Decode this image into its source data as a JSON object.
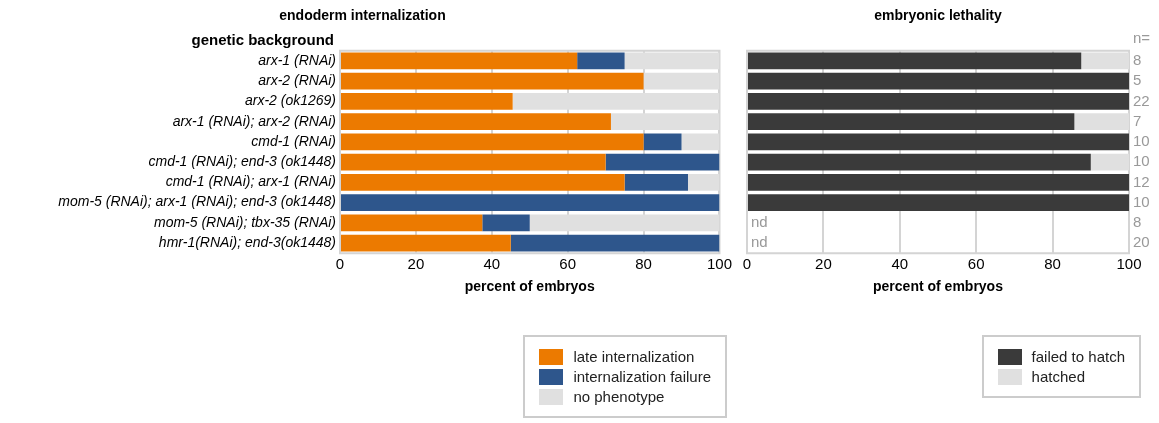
{
  "chart_data": [
    {
      "type": "bar",
      "orientation": "horizontal",
      "stacked": true,
      "title": "endoderm internalization",
      "xlabel": "percent of embryos",
      "ylabel": "genetic background",
      "categories": [
        "arx-1 (RNAi)",
        "arx-2 (RNAi)",
        "arx-2 (ok1269)",
        "arx-1 (RNAi); arx-2 (RNAi)",
        "cmd-1 (RNAi)",
        "cmd-1 (RNAi); end-3 (ok1448)",
        "cmd-1 (RNAi); arx-1 (RNAi)",
        "mom-5 (RNAi); arx-1 (RNAi); end-3 (ok1448)",
        "mom-5 (RNAi); tbx-35 (RNAi)",
        "hmr-1(RNAi); end-3(ok1448)"
      ],
      "series": [
        {
          "name": "late internalization",
          "color": "#ec7a00",
          "values": [
            62.5,
            80,
            45.5,
            71.4,
            80,
            70,
            75,
            0,
            37.5,
            45
          ]
        },
        {
          "name": "internalization failure",
          "color": "#2e568c",
          "values": [
            12.5,
            0,
            0,
            0,
            10,
            30,
            16.7,
            100,
            12.5,
            55
          ]
        },
        {
          "name": "no phenotype",
          "color": "#e0e0e0",
          "values": [
            25,
            20,
            54.5,
            28.6,
            10,
            0,
            8.3,
            0,
            50,
            0
          ]
        }
      ],
      "xlim": [
        0,
        100
      ],
      "xticks": [
        0,
        20,
        40,
        60,
        80,
        100
      ],
      "grid": "x",
      "legend": "bottom right"
    },
    {
      "type": "bar",
      "orientation": "horizontal",
      "stacked": true,
      "title": "embryonic lethality",
      "xlabel": "percent of embryos",
      "categories": [
        null,
        null,
        null,
        null,
        null,
        null,
        null,
        null,
        null,
        null
      ],
      "series": [
        {
          "name": "failed to hatch",
          "color": "#3a3a3a",
          "values": [
            87.5,
            100,
            100,
            85.7,
            100,
            90,
            100,
            100,
            null,
            null
          ],
          "value_labels": [
            null,
            null,
            null,
            null,
            null,
            null,
            null,
            null,
            "nd",
            "nd"
          ]
        },
        {
          "name": "hatched",
          "color": "#e0e0e0",
          "values": [
            12.5,
            0,
            0,
            14.3,
            0,
            10,
            0,
            0,
            null,
            null
          ]
        }
      ],
      "xlim": [
        0,
        100
      ],
      "xticks": [
        0,
        20,
        40,
        60,
        80,
        100
      ],
      "grid": "x",
      "legend": "bottom right",
      "tick_labels": "x",
      "annotations": [
        "n=",
        "8",
        "5",
        "22",
        "7",
        "10",
        "10",
        "12",
        "10",
        "8",
        "20"
      ]
    }
  ]
}
